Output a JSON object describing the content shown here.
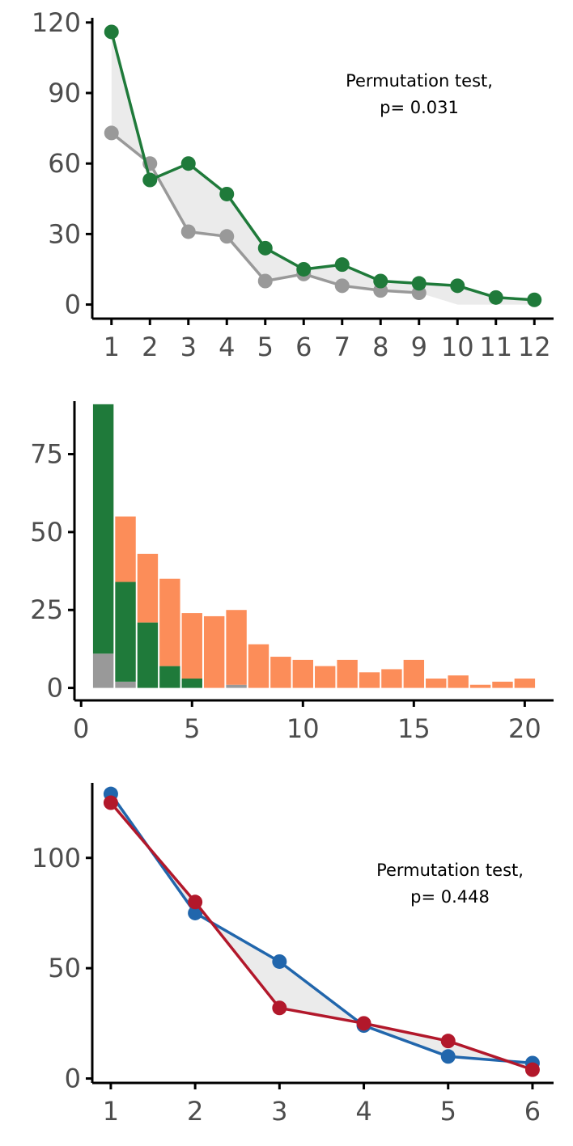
{
  "colors": {
    "green": "#1f7a3a",
    "gray": "#999999",
    "orange": "#fc8d59",
    "blue": "#2166ac",
    "red": "#b2182b",
    "ribbon": "#ebebeb"
  },
  "chart_data": [
    {
      "type": "line",
      "x_ticks": [
        "1",
        "2",
        "3",
        "4",
        "5",
        "6",
        "7",
        "8",
        "9",
        "10",
        "11",
        "12"
      ],
      "y_ticks": [
        "0",
        "30",
        "60",
        "90",
        "120"
      ],
      "xlim": [
        0.5,
        12.5
      ],
      "ylim": [
        -6,
        122
      ],
      "series": [
        {
          "x": [
            1,
            2,
            3,
            4,
            5,
            6,
            7,
            8,
            9,
            10,
            11,
            12
          ],
          "values": [
            116,
            53,
            60,
            47,
            24,
            15,
            17,
            10,
            9,
            8,
            3,
            2
          ],
          "color": "green"
        },
        {
          "x": [
            1,
            2,
            3,
            4,
            5,
            6,
            7,
            8,
            9
          ],
          "values": [
            73,
            60,
            31,
            29,
            10,
            13,
            8,
            6,
            5
          ],
          "color": "gray"
        }
      ],
      "annotation": [
        "Permutation test,",
        "p= 0.031"
      ],
      "grid": false,
      "legend": "none"
    },
    {
      "type": "bar",
      "stacked": true,
      "x_ticks": [
        "0",
        "5",
        "10",
        "15",
        "20"
      ],
      "y_ticks": [
        "0",
        "25",
        "50",
        "75"
      ],
      "xlim": [
        -0.3,
        21.3
      ],
      "ylim": [
        -4,
        92
      ],
      "x": [
        1,
        2,
        3,
        4,
        5,
        6,
        7,
        8,
        9,
        10,
        11,
        12,
        13,
        14,
        15,
        16,
        17,
        18,
        19,
        20
      ],
      "series": [
        {
          "color": "gray",
          "values": [
            11,
            2,
            0,
            0,
            0,
            0,
            1,
            0,
            0,
            0,
            0,
            0,
            0,
            0,
            0,
            0,
            0,
            0,
            0,
            0
          ]
        },
        {
          "color": "green",
          "values": [
            80,
            32,
            21,
            7,
            3,
            0,
            0,
            0,
            0,
            0,
            0,
            0,
            0,
            0,
            0,
            0,
            0,
            0,
            0,
            0
          ]
        },
        {
          "color": "orange",
          "values": [
            0,
            21,
            22,
            28,
            21,
            23,
            24,
            14,
            10,
            9,
            7,
            9,
            5,
            6,
            9,
            3,
            4,
            1,
            2,
            3
          ]
        }
      ],
      "grid": false,
      "legend": "none"
    },
    {
      "type": "line",
      "x_ticks": [
        "1",
        "2",
        "3",
        "4",
        "5",
        "6"
      ],
      "y_ticks": [
        "0",
        "50",
        "100"
      ],
      "xlim": [
        0.78,
        6.25
      ],
      "ylim": [
        -2,
        134
      ],
      "series": [
        {
          "x": [
            1,
            2,
            3,
            4,
            5,
            6
          ],
          "values": [
            129,
            75,
            53,
            24,
            10,
            7
          ],
          "color": "blue"
        },
        {
          "x": [
            1,
            2,
            3,
            4,
            5,
            6
          ],
          "values": [
            125,
            80,
            32,
            25,
            17,
            4
          ],
          "color": "red"
        }
      ],
      "annotation": [
        "Permutation test,",
        "p= 0.448"
      ],
      "grid": false,
      "legend": "none"
    }
  ]
}
